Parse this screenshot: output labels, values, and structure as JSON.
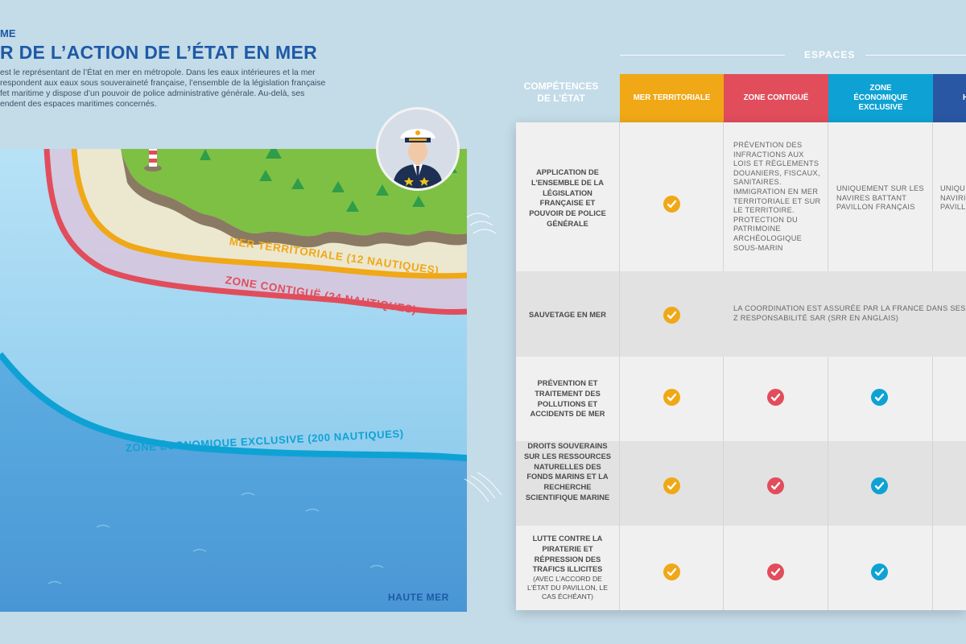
{
  "header": {
    "kicker": "ME",
    "title": "R DE L’ACTION DE L’ÉTAT EN MER",
    "intro_lines": [
      " est le représentant de l’État en mer en métropole. Dans les eaux intérieures et la mer",
      "respondent aux eaux sous souveraineté française, l’ensemble de la législation française",
      "fet maritime y dispose d’un pouvoir de police administrative générale. Au-delà, ses",
      "endent des espaces maritimes concernés."
    ]
  },
  "map": {
    "zones": {
      "territoriale": "MER TERRITORIALE (12 NAUTIQUES)",
      "contigue": "ZONE CONTIGUË (24 NAUTIQUES)",
      "zee": "ZONE ÉCONOMIQUE EXCLUSIVE (200 NAUTIQUES)"
    },
    "haute_mer": "HAUTE MER",
    "colors": {
      "orange": "#f0a816",
      "red": "#e14d5b",
      "blue": "#0ea2d4",
      "land": "#7ec043",
      "sea": "#8fcdee",
      "deep": "#5aa5dd"
    }
  },
  "table": {
    "side_label": "COMPÉTENCES DE L’ÉTAT",
    "espaces_label": "ESPACES",
    "columns": [
      {
        "label": "MER TERRITORIALE",
        "color": "#f0a816"
      },
      {
        "label": "ZONE CONTIGUË",
        "color": "#e14d5b"
      },
      {
        "label": "ZONE ÉCONOMIQUE EXCLUSIVE",
        "color": "#0ea2d4"
      },
      {
        "label": "H",
        "color": "#2957a4"
      }
    ],
    "rows": [
      {
        "label": "APPLICATION DE L’ENSEMBLE DE LA LÉGISLATION FRANÇAISE ET POUVOIR DE POLICE GÉNÉRALE",
        "cells": [
          "check",
          "PRÉVENTION DES INFRACTIONS AUX LOIS ET RÈGLEMENTS DOUANIERS, FISCAUX, SANITAIRES. IMMIGRATION EN MER TERRITORIALE ET SUR LE TERRITOIRE. PROTECTION DU PATRIMOINE ARCHÉOLOGIQUE SOUS-MARIN",
          "UNIQUEMENT SUR LES NAVIRES BATTANT PAVILLON FRANÇAIS",
          "UNIQU NAVIRI PAVILL"
        ]
      },
      {
        "label": "SAUVETAGE EN MER",
        "cells": [
          "check",
          "LA COORDINATION EST ASSURÉE PAR LA FRANCE DANS SES Z RESPONSABILITÉ SAR (SRR EN ANGLAIS)"
        ]
      },
      {
        "label": "PRÉVENTION ET TRAITEMENT DES POLLUTIONS ET ACCIDENTS DE MER",
        "cells": [
          "check",
          "check",
          "check"
        ]
      },
      {
        "label": "DROITS SOUVERAINS SUR LES RESSOURCES NATURELLES DES FONDS MARINS ET LA RECHERCHE SCIENTIFIQUE MARINE",
        "cells": [
          "check",
          "check",
          "check"
        ]
      },
      {
        "label": "LUTTE CONTRE LA PIRATERIE ET RÉPRESSION DES TRAFICS ILLICITES",
        "sublabel": "(AVEC L’ACCORD DE L’ÉTAT DU PAVILLON, LE CAS ÉCHÉANT)",
        "cells": [
          "check",
          "check",
          "check"
        ]
      }
    ]
  }
}
